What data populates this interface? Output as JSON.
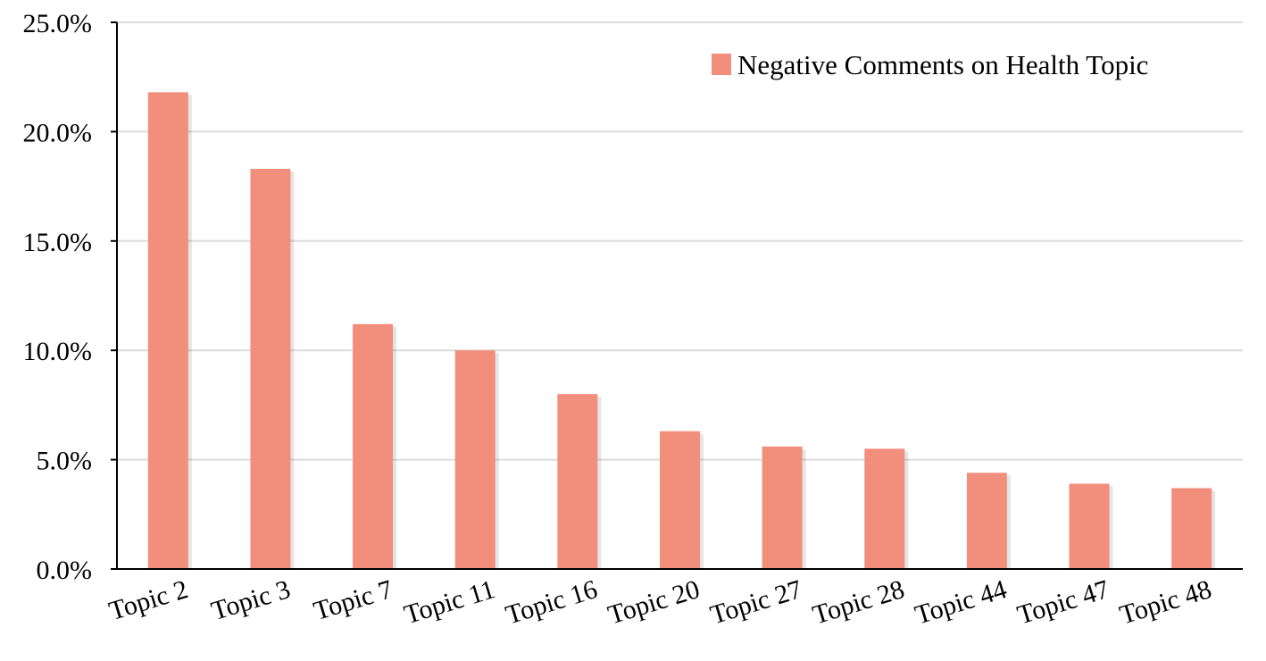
{
  "chart_data": {
    "type": "bar",
    "categories": [
      "Topic 2",
      "Topic 3",
      "Topic 7",
      "Topic 11",
      "Topic 16",
      "Topic 20",
      "Topic 27",
      "Topic 28",
      "Topic 44",
      "Topic 47",
      "Topic 48"
    ],
    "series": [
      {
        "name": "Negative Comments on Health Topic",
        "values": [
          21.8,
          18.3,
          11.2,
          10.0,
          8.0,
          6.3,
          5.6,
          5.5,
          4.4,
          3.9,
          3.7
        ],
        "color": "#f28e7c"
      }
    ],
    "y_ticks": [
      "0.0%",
      "5.0%",
      "10.0%",
      "15.0%",
      "20.0%",
      "25.0%"
    ],
    "ylim": [
      0,
      25
    ],
    "y_unit": "%",
    "title": "",
    "xlabel": "",
    "ylabel": "",
    "grid": true,
    "legend_position": "top-right",
    "x_tick_rotation": "slanted"
  }
}
